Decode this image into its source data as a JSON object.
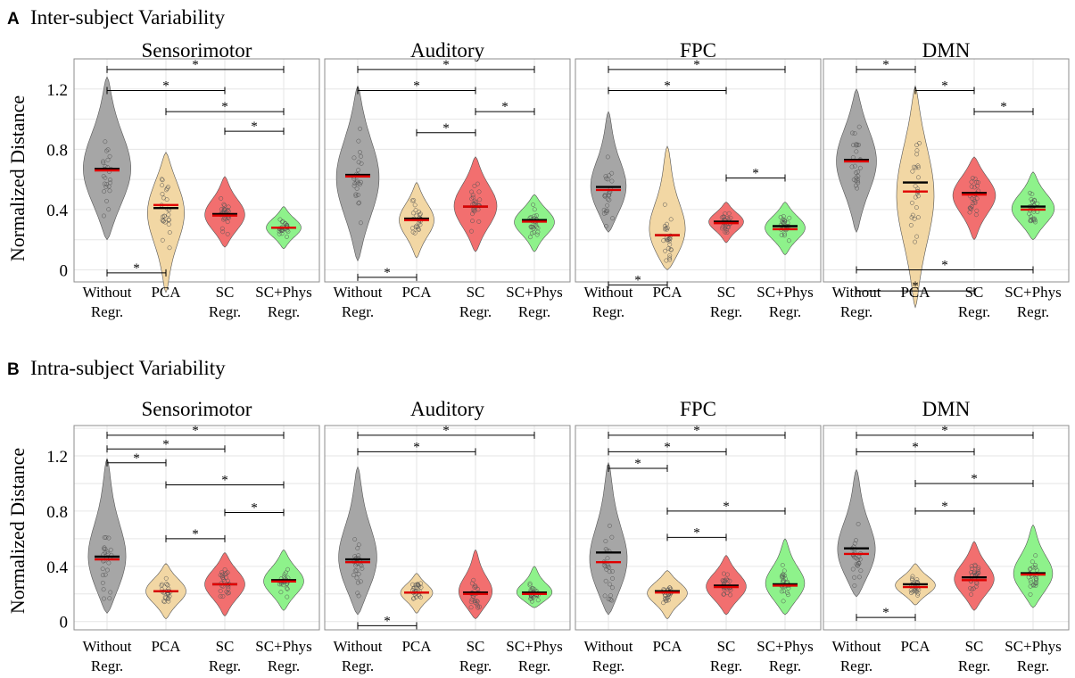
{
  "colors": {
    "without": "#a6a6a6",
    "pca": "#f2d7a4",
    "sc": "#f26f6f",
    "scphys": "#8ef28b",
    "median": "#000000",
    "mean": "#e00000",
    "grid": "#e6e6e6",
    "frame": "#8c8c8c"
  },
  "ylabel": "Normalized Distance",
  "y_ticks": [
    "1.2",
    "0.8",
    "0.4",
    "0"
  ],
  "categories": [
    {
      "key": "without",
      "line1": "Without",
      "line2": "Regr."
    },
    {
      "key": "pca",
      "line1": "PCA",
      "line2": ""
    },
    {
      "key": "sc",
      "line1": "SC",
      "line2": "Regr."
    },
    {
      "key": "scphys",
      "line1": "SC+Phys",
      "line2": "Regr."
    }
  ],
  "sig_marker": "*",
  "panels": [
    {
      "letter": "A",
      "heading": "Inter-subject Variability"
    },
    {
      "letter": "B",
      "heading": "Intra-subject Variability"
    }
  ],
  "chart_data": [
    {
      "type": "violin",
      "panel": "A",
      "title": "Sensorimotor",
      "ylabel": "Normalized Distance",
      "ylim": [
        -0.08,
        1.4
      ],
      "series": [
        {
          "name": "Without Regr.",
          "median": 0.67,
          "mean": 0.66,
          "min": 0.2,
          "max": 1.28,
          "peak": 0.65,
          "width": 0.9
        },
        {
          "name": "PCA",
          "median": 0.41,
          "mean": 0.43,
          "min": -0.15,
          "max": 0.78,
          "peak": 0.4,
          "width": 0.7
        },
        {
          "name": "SC Regr.",
          "median": 0.37,
          "mean": 0.36,
          "min": 0.15,
          "max": 0.62,
          "peak": 0.36,
          "width": 0.75
        },
        {
          "name": "SC+Phys Regr.",
          "median": 0.28,
          "mean": 0.28,
          "min": 0.14,
          "max": 0.42,
          "peak": 0.28,
          "width": 0.65
        }
      ],
      "comparisons": [
        {
          "from": 0,
          "to": 3,
          "y": 1.33
        },
        {
          "from": 0,
          "to": 2,
          "y": 1.19
        },
        {
          "from": 1,
          "to": 3,
          "y": 1.05
        },
        {
          "from": 2,
          "to": 3,
          "y": 0.92
        },
        {
          "from": 0,
          "to": 1,
          "y": -0.02
        }
      ]
    },
    {
      "type": "violin",
      "panel": "A",
      "title": "Auditory",
      "ylabel": "",
      "ylim": [
        -0.08,
        1.4
      ],
      "series": [
        {
          "name": "Without Regr.",
          "median": 0.63,
          "mean": 0.62,
          "min": 0.06,
          "max": 1.22,
          "peak": 0.6,
          "width": 0.8
        },
        {
          "name": "PCA",
          "median": 0.34,
          "mean": 0.33,
          "min": 0.08,
          "max": 0.58,
          "peak": 0.33,
          "width": 0.65
        },
        {
          "name": "SC Regr.",
          "median": 0.42,
          "mean": 0.42,
          "min": 0.12,
          "max": 0.75,
          "peak": 0.42,
          "width": 0.8
        },
        {
          "name": "SC+Phys Regr.",
          "median": 0.33,
          "mean": 0.32,
          "min": 0.12,
          "max": 0.5,
          "peak": 0.32,
          "width": 0.75
        }
      ],
      "comparisons": [
        {
          "from": 0,
          "to": 3,
          "y": 1.33
        },
        {
          "from": 0,
          "to": 2,
          "y": 1.19
        },
        {
          "from": 2,
          "to": 3,
          "y": 1.05
        },
        {
          "from": 1,
          "to": 2,
          "y": 0.91
        },
        {
          "from": 0,
          "to": 1,
          "y": -0.05
        }
      ]
    },
    {
      "type": "violin",
      "panel": "A",
      "title": "FPC",
      "ylabel": "",
      "ylim": [
        -0.08,
        1.4
      ],
      "series": [
        {
          "name": "Without Regr.",
          "median": 0.55,
          "mean": 0.53,
          "min": 0.25,
          "max": 1.05,
          "peak": 0.52,
          "width": 0.7
        },
        {
          "name": "PCA",
          "median": 0.23,
          "mean": 0.23,
          "min": 0.0,
          "max": 0.82,
          "peak": 0.22,
          "width": 0.75
        },
        {
          "name": "SC Regr.",
          "median": 0.32,
          "mean": 0.31,
          "min": 0.18,
          "max": 0.45,
          "peak": 0.32,
          "width": 0.65
        },
        {
          "name": "SC+Phys Regr.",
          "median": 0.29,
          "mean": 0.27,
          "min": 0.1,
          "max": 0.45,
          "peak": 0.28,
          "width": 0.75
        }
      ],
      "comparisons": [
        {
          "from": 0,
          "to": 3,
          "y": 1.33
        },
        {
          "from": 0,
          "to": 2,
          "y": 1.19
        },
        {
          "from": 2,
          "to": 3,
          "y": 0.61
        },
        {
          "from": 0,
          "to": 1,
          "y": -0.1
        }
      ]
    },
    {
      "type": "violin",
      "panel": "A",
      "title": "DMN",
      "ylabel": "",
      "ylim": [
        -0.08,
        1.4
      ],
      "series": [
        {
          "name": "Without Regr.",
          "median": 0.73,
          "mean": 0.72,
          "min": 0.25,
          "max": 1.2,
          "peak": 0.72,
          "width": 0.75
        },
        {
          "name": "PCA",
          "median": 0.58,
          "mean": 0.52,
          "min": -0.25,
          "max": 1.22,
          "peak": 0.5,
          "width": 0.7
        },
        {
          "name": "SC Regr.",
          "median": 0.51,
          "mean": 0.5,
          "min": 0.2,
          "max": 0.75,
          "peak": 0.5,
          "width": 0.8
        },
        {
          "name": "SC+Phys Regr.",
          "median": 0.42,
          "mean": 0.4,
          "min": 0.2,
          "max": 0.65,
          "peak": 0.4,
          "width": 0.8
        }
      ],
      "comparisons": [
        {
          "from": 0,
          "to": 1,
          "y": 1.33
        },
        {
          "from": 1,
          "to": 2,
          "y": 1.19
        },
        {
          "from": 2,
          "to": 3,
          "y": 1.05
        },
        {
          "from": 0,
          "to": 3,
          "y": 0.0
        },
        {
          "from": 0,
          "to": 2,
          "y": -0.14
        }
      ]
    },
    {
      "type": "violin",
      "panel": "B",
      "title": "Sensorimotor",
      "ylabel": "Normalized Distance",
      "ylim": [
        -0.06,
        1.42
      ],
      "series": [
        {
          "name": "Without Regr.",
          "median": 0.47,
          "mean": 0.45,
          "min": 0.06,
          "max": 1.18,
          "peak": 0.42,
          "width": 0.75
        },
        {
          "name": "PCA",
          "median": 0.22,
          "mean": 0.22,
          "min": 0.02,
          "max": 0.42,
          "peak": 0.22,
          "width": 0.75
        },
        {
          "name": "SC Regr.",
          "median": 0.27,
          "mean": 0.27,
          "min": 0.04,
          "max": 0.5,
          "peak": 0.27,
          "width": 0.75
        },
        {
          "name": "SC+Phys Regr.",
          "median": 0.3,
          "mean": 0.29,
          "min": 0.08,
          "max": 0.52,
          "peak": 0.29,
          "width": 0.75
        }
      ],
      "comparisons": [
        {
          "from": 0,
          "to": 3,
          "y": 1.35
        },
        {
          "from": 0,
          "to": 2,
          "y": 1.25
        },
        {
          "from": 0,
          "to": 1,
          "y": 1.15
        },
        {
          "from": 1,
          "to": 3,
          "y": 0.99
        },
        {
          "from": 2,
          "to": 3,
          "y": 0.79
        },
        {
          "from": 1,
          "to": 2,
          "y": 0.6
        }
      ]
    },
    {
      "type": "violin",
      "panel": "B",
      "title": "Auditory",
      "ylabel": "",
      "ylim": [
        -0.06,
        1.42
      ],
      "series": [
        {
          "name": "Without Regr.",
          "median": 0.45,
          "mean": 0.43,
          "min": 0.05,
          "max": 1.12,
          "peak": 0.42,
          "width": 0.75
        },
        {
          "name": "PCA",
          "median": 0.21,
          "mean": 0.21,
          "min": 0.06,
          "max": 0.35,
          "peak": 0.21,
          "width": 0.6
        },
        {
          "name": "SC Regr.",
          "median": 0.21,
          "mean": 0.2,
          "min": 0.02,
          "max": 0.52,
          "peak": 0.2,
          "width": 0.65
        },
        {
          "name": "SC+Phys Regr.",
          "median": 0.21,
          "mean": 0.2,
          "min": 0.1,
          "max": 0.4,
          "peak": 0.2,
          "width": 0.7
        }
      ],
      "comparisons": [
        {
          "from": 0,
          "to": 3,
          "y": 1.35
        },
        {
          "from": 0,
          "to": 2,
          "y": 1.23
        },
        {
          "from": 0,
          "to": 1,
          "y": -0.03
        }
      ]
    },
    {
      "type": "violin",
      "panel": "B",
      "title": "FPC",
      "ylabel": "",
      "ylim": [
        -0.06,
        1.42
      ],
      "series": [
        {
          "name": "Without Regr.",
          "median": 0.5,
          "mean": 0.43,
          "min": 0.05,
          "max": 1.15,
          "peak": 0.4,
          "width": 0.75
        },
        {
          "name": "PCA",
          "median": 0.22,
          "mean": 0.21,
          "min": 0.02,
          "max": 0.37,
          "peak": 0.21,
          "width": 0.75
        },
        {
          "name": "SC Regr.",
          "median": 0.26,
          "mean": 0.25,
          "min": 0.05,
          "max": 0.48,
          "peak": 0.25,
          "width": 0.75
        },
        {
          "name": "SC+Phys Regr.",
          "median": 0.27,
          "mean": 0.26,
          "min": 0.05,
          "max": 0.6,
          "peak": 0.26,
          "width": 0.75
        }
      ],
      "comparisons": [
        {
          "from": 0,
          "to": 3,
          "y": 1.35
        },
        {
          "from": 0,
          "to": 2,
          "y": 1.23
        },
        {
          "from": 0,
          "to": 1,
          "y": 1.11
        },
        {
          "from": 1,
          "to": 3,
          "y": 0.8
        },
        {
          "from": 1,
          "to": 2,
          "y": 0.61
        }
      ]
    },
    {
      "type": "violin",
      "panel": "B",
      "title": "DMN",
      "ylabel": "",
      "ylim": [
        -0.06,
        1.42
      ],
      "series": [
        {
          "name": "Without Regr.",
          "median": 0.53,
          "mean": 0.49,
          "min": 0.18,
          "max": 1.1,
          "peak": 0.48,
          "width": 0.75
        },
        {
          "name": "PCA",
          "median": 0.27,
          "mean": 0.25,
          "min": 0.12,
          "max": 0.42,
          "peak": 0.26,
          "width": 0.75
        },
        {
          "name": "SC Regr.",
          "median": 0.32,
          "mean": 0.3,
          "min": 0.08,
          "max": 0.58,
          "peak": 0.3,
          "width": 0.75
        },
        {
          "name": "SC+Phys Regr.",
          "median": 0.35,
          "mean": 0.34,
          "min": 0.1,
          "max": 0.7,
          "peak": 0.33,
          "width": 0.75
        }
      ],
      "comparisons": [
        {
          "from": 0,
          "to": 3,
          "y": 1.35
        },
        {
          "from": 0,
          "to": 2,
          "y": 1.23
        },
        {
          "from": 1,
          "to": 3,
          "y": 1.0
        },
        {
          "from": 1,
          "to": 2,
          "y": 0.8
        },
        {
          "from": 0,
          "to": 1,
          "y": 0.03
        }
      ]
    }
  ]
}
